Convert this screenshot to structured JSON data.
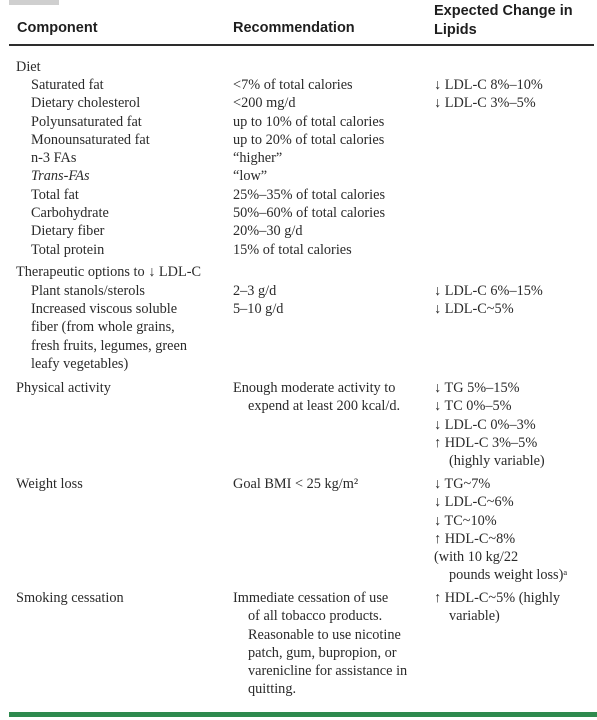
{
  "headers": {
    "component": "Component",
    "recommendation": "Recommendation",
    "expected_change": [
      "Expected Change in",
      "Lipids"
    ]
  },
  "diet": {
    "label": "Diet",
    "items": [
      {
        "component": "Saturated fat",
        "recommendation": "<7% of total calories",
        "change": "↓ LDL-C 8%–10%"
      },
      {
        "component": "Dietary cholesterol",
        "recommendation": "<200 mg/d",
        "change": "↓ LDL-C 3%–5%"
      },
      {
        "component": "Polyunsaturated fat",
        "recommendation": "up to 10% of total calories",
        "change": ""
      },
      {
        "component": "Monounsaturated fat",
        "recommendation": "up to 20% of total calories",
        "change": ""
      },
      {
        "component": "n-3 FAs",
        "recommendation": "“higher”",
        "change": ""
      },
      {
        "component": "Trans-FAs",
        "recommendation": "“low”",
        "change": ""
      },
      {
        "component": "Total fat",
        "recommendation": "25%–35% of total calories",
        "change": ""
      },
      {
        "component": "Carbohydrate",
        "recommendation": "50%–60% of total calories",
        "change": ""
      },
      {
        "component": "Dietary fiber",
        "recommendation": "20%–30 g/d",
        "change": ""
      },
      {
        "component": "Total protein",
        "recommendation": "15% of total calories",
        "change": ""
      }
    ]
  },
  "therapeutic": {
    "label": "Therapeutic options to ↓ LDL-C",
    "plant": {
      "component": "Plant stanols/sterols",
      "recommendation": "2–3 g/d",
      "change": "↓ LDL-C 6%–15%"
    },
    "fiber": {
      "component": [
        "Increased viscous soluble",
        "fiber (from whole grains,",
        "fresh fruits, legumes, green",
        "leafy vegetables)"
      ],
      "recommendation": "5–10 g/d",
      "change": "↓ LDL-C~5%"
    }
  },
  "physical": {
    "component": "Physical activity",
    "recommendation": [
      "Enough moderate activity to",
      "expend at least 200 kcal/d."
    ],
    "change": [
      "↓ TG 5%–15%",
      "↓ TC 0%–5%",
      "↓ LDL-C 0%–3%",
      "↑ HDL-C 3%–5%",
      "(highly variable)"
    ]
  },
  "weight": {
    "component": "Weight loss",
    "recommendation": "Goal BMI < 25 kg/m²",
    "change": [
      "↓ TG~7%",
      "↓ LDL-C~6%",
      "↓ TC~10%",
      "↑ HDL-C~8%",
      "(with 10 kg/22",
      "pounds weight loss)ᵃ"
    ]
  },
  "smoking": {
    "component": "Smoking cessation",
    "recommendation": [
      "Immediate cessation of use",
      "of all tobacco products.",
      "Reasonable to use nicotine",
      "patch, gum, bupropion, or",
      "varenicline for assistance in",
      "quitting."
    ],
    "change": [
      "↑ HDL-C~5% (highly",
      "variable)"
    ]
  },
  "colors": {
    "accent_bar": "#2e8a4e",
    "rule": "#2d2d2d",
    "text": "#2a2a2a"
  }
}
